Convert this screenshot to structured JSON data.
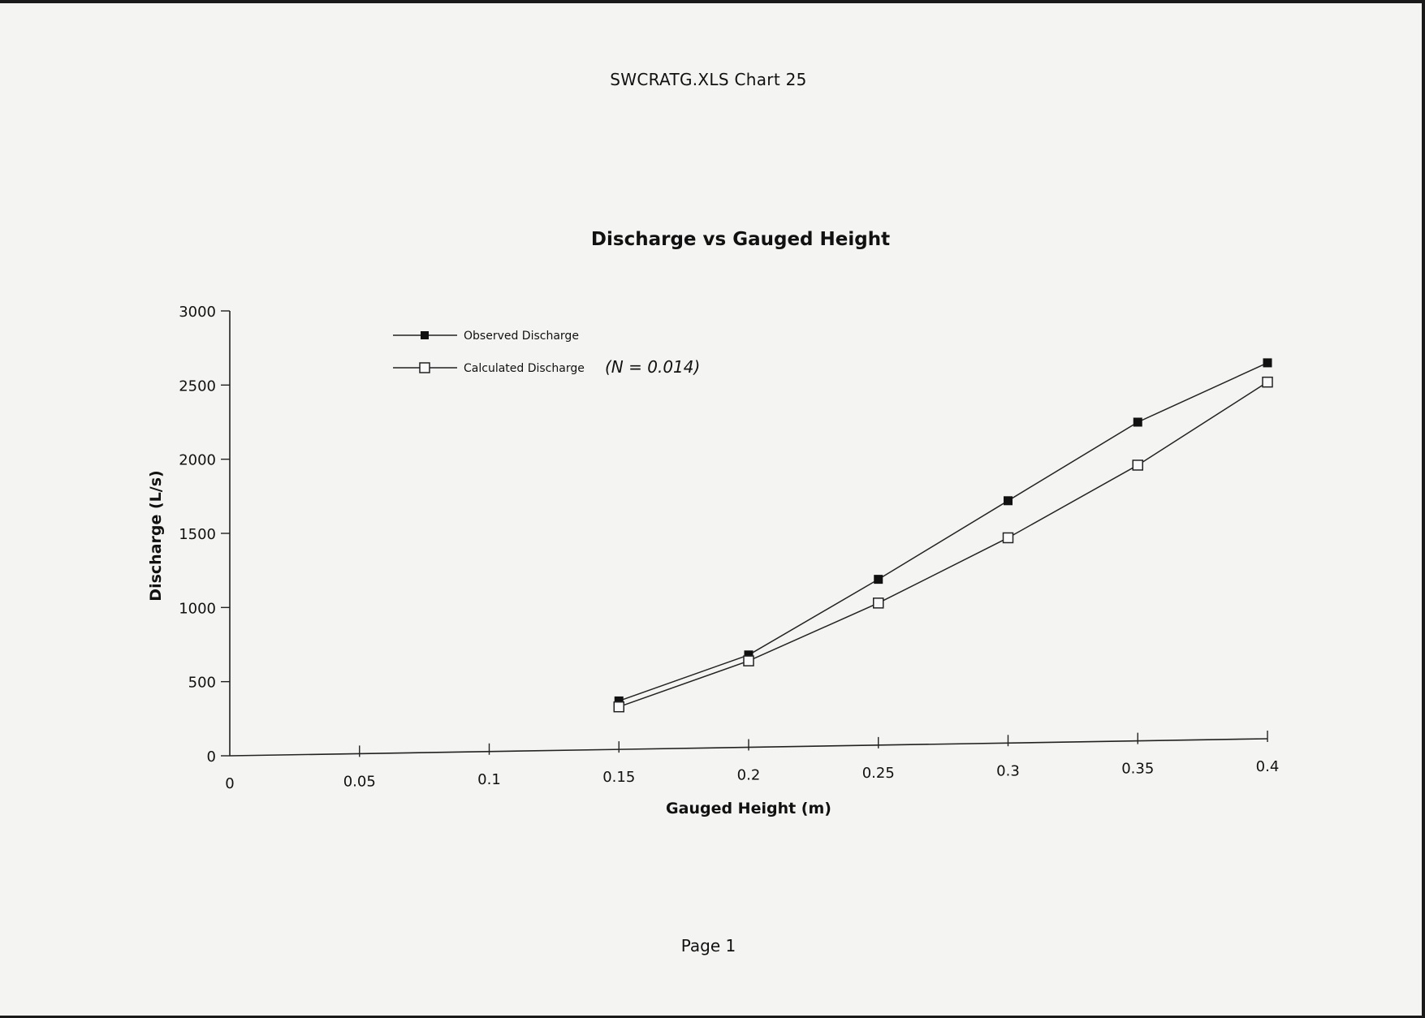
{
  "page": {
    "header": "SWCRATG.XLS Chart 25",
    "footer": "Page 1",
    "annotation": "(N = 0.014)"
  },
  "chart_data": {
    "type": "line",
    "title": "Discharge vs Gauged Height",
    "xlabel": "Gauged Height (m)",
    "ylabel": "Discharge (L/s)",
    "xlim": [
      0,
      0.4
    ],
    "ylim": [
      0,
      3000
    ],
    "x_ticks": [
      0,
      0.05,
      0.1,
      0.15,
      0.2,
      0.25,
      0.3,
      0.35,
      0.4
    ],
    "y_ticks": [
      0,
      500,
      1000,
      1500,
      2000,
      2500,
      3000
    ],
    "x_tick_labels": [
      "0",
      "0.05",
      "0.1",
      "0.15",
      "0.2",
      "0.25",
      "0.3",
      "0.35",
      "0.4"
    ],
    "y_tick_labels": [
      "0",
      "500",
      "1000",
      "1500",
      "2000",
      "2500",
      "3000"
    ],
    "x": [
      0.15,
      0.2,
      0.25,
      0.3,
      0.35,
      0.4
    ],
    "series": [
      {
        "name": "Observed Discharge",
        "marker": "filled-square",
        "values": [
          370,
          680,
          1190,
          1720,
          2250,
          2650
        ]
      },
      {
        "name": "Calculated Discharge",
        "marker": "open-square",
        "values": [
          330,
          640,
          1030,
          1470,
          1960,
          2520
        ]
      }
    ],
    "legend_position": "top-left",
    "grid": false
  }
}
